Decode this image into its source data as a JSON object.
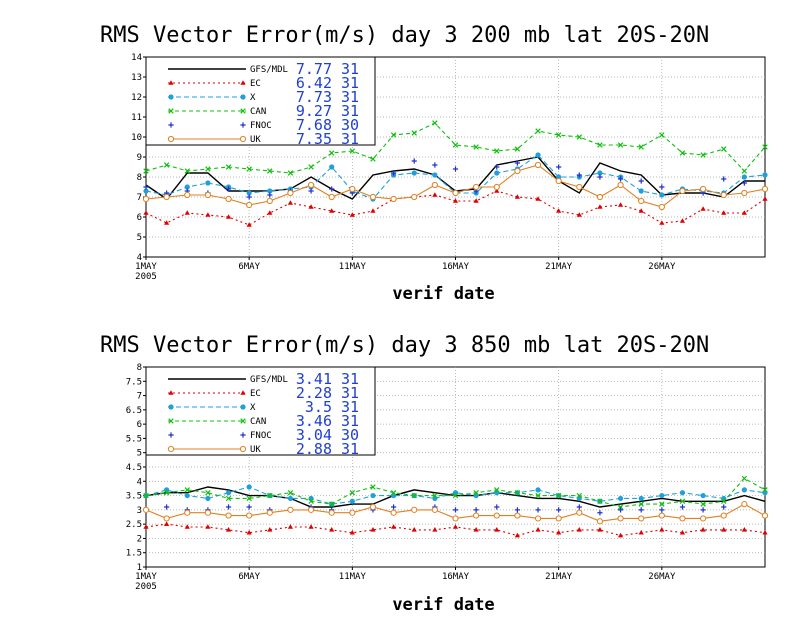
{
  "chart_data": [
    {
      "type": "line",
      "title": "RMS Vector Error(m/s) day 3  200 mb   lat 20S-20N",
      "xlabel": "verif date",
      "ylabel": "",
      "x_tick_labels": [
        "1MAY",
        "6MAY",
        "11MAY",
        "16MAY",
        "21MAY",
        "26MAY"
      ],
      "x_year_label": "2005",
      "x_days": [
        1,
        2,
        3,
        4,
        5,
        6,
        7,
        8,
        9,
        10,
        11,
        12,
        13,
        14,
        15,
        16,
        17,
        18,
        19,
        20,
        21,
        22,
        23,
        24,
        25,
        26,
        27,
        28,
        29,
        30,
        31
      ],
      "ylim": [
        4,
        14
      ],
      "y_ticks": [
        4,
        5,
        6,
        7,
        8,
        9,
        10,
        11,
        12,
        13,
        14
      ],
      "grid": true,
      "legend_position": "top-left",
      "series": [
        {
          "name": "GFS/MDL",
          "stat": "7.77",
          "count": "31",
          "color": "#000000",
          "dash": "",
          "marker": "none",
          "values": [
            7.6,
            6.9,
            8.2,
            8.2,
            7.3,
            7.3,
            7.3,
            7.4,
            8.0,
            7.4,
            6.9,
            8.1,
            8.3,
            8.4,
            8.1,
            7.3,
            7.4,
            8.6,
            8.8,
            9.0,
            7.8,
            7.2,
            8.7,
            8.3,
            8.1,
            7.1,
            7.2,
            7.2,
            7.0,
            7.8,
            7.8
          ]
        },
        {
          "name": "EC",
          "stat": "6.42",
          "count": "31",
          "color": "#e00000",
          "dash": "2,3",
          "marker": "triangle",
          "values": [
            6.2,
            5.7,
            6.2,
            6.1,
            6.0,
            5.6,
            6.2,
            6.7,
            6.5,
            6.3,
            6.1,
            6.3,
            6.9,
            7.0,
            7.1,
            6.8,
            6.8,
            7.3,
            7.0,
            6.9,
            6.3,
            6.1,
            6.5,
            6.6,
            6.3,
            5.7,
            5.8,
            6.4,
            6.2,
            6.2,
            6.9
          ]
        },
        {
          "name": "X",
          "stat": "7.73",
          "count": "31",
          "color": "#20a0d8",
          "dash": "5,3",
          "marker": "circle",
          "values": [
            7.3,
            7.1,
            7.5,
            7.7,
            7.5,
            7.2,
            7.3,
            7.4,
            7.5,
            8.5,
            7.3,
            6.9,
            8.1,
            8.2,
            8.1,
            7.2,
            7.2,
            8.2,
            8.4,
            9.1,
            8.0,
            8.0,
            8.2,
            8.0,
            7.3,
            7.1,
            7.4,
            7.3,
            7.2,
            8.0,
            8.1
          ]
        },
        {
          "name": "CAN",
          "stat": "9.27",
          "count": "31",
          "color": "#10c010",
          "dash": "4,3",
          "marker": "x",
          "values": [
            8.3,
            8.6,
            8.3,
            8.4,
            8.5,
            8.4,
            8.3,
            8.2,
            8.5,
            9.2,
            9.3,
            8.9,
            10.1,
            10.2,
            10.7,
            9.6,
            9.5,
            9.3,
            9.4,
            10.3,
            10.1,
            10.0,
            9.6,
            9.6,
            9.5,
            10.1,
            9.2,
            9.1,
            9.4,
            8.3,
            9.5
          ]
        },
        {
          "name": "FNOC",
          "stat": "7.68",
          "count": "30",
          "color": "#2030d0",
          "dash": "",
          "marker": "plus",
          "values": [
            7.5,
            7.2,
            7.3,
            7.2,
            7.4,
            7.0,
            7.1,
            7.3,
            7.3,
            7.4,
            7.2,
            7.0,
            8.2,
            8.8,
            8.6,
            8.4,
            7.3,
            8.5,
            8.7,
            8.6,
            8.5,
            8.1,
            8.0,
            7.9,
            7.8,
            7.5,
            7.3,
            7.2,
            7.9,
            7.7,
            null
          ]
        },
        {
          "name": "UK",
          "stat": "7.35",
          "count": "31",
          "color": "#e08020",
          "dash": "",
          "marker": "circle-open",
          "values": [
            6.9,
            7.0,
            7.1,
            7.1,
            6.9,
            6.6,
            6.8,
            7.2,
            7.6,
            7.0,
            7.4,
            7.0,
            6.9,
            7.0,
            7.6,
            7.2,
            7.5,
            7.5,
            8.3,
            8.6,
            7.8,
            7.5,
            7.0,
            7.6,
            6.8,
            6.5,
            7.3,
            7.4,
            7.1,
            7.2,
            7.4
          ]
        }
      ]
    },
    {
      "type": "line",
      "title": "RMS Vector Error(m/s) day 3  850 mb   lat 20S-20N",
      "xlabel": "verif date",
      "ylabel": "",
      "x_tick_labels": [
        "1MAY",
        "6MAY",
        "11MAY",
        "16MAY",
        "21MAY",
        "26MAY"
      ],
      "x_year_label": "2005",
      "x_days": [
        1,
        2,
        3,
        4,
        5,
        6,
        7,
        8,
        9,
        10,
        11,
        12,
        13,
        14,
        15,
        16,
        17,
        18,
        19,
        20,
        21,
        22,
        23,
        24,
        25,
        26,
        27,
        28,
        29,
        30,
        31
      ],
      "ylim": [
        1,
        8
      ],
      "y_ticks": [
        1,
        1.5,
        2,
        2.5,
        3,
        3.5,
        4,
        4.5,
        5,
        5.5,
        6,
        6.5,
        7,
        7.5,
        8
      ],
      "grid": true,
      "legend_position": "top-left",
      "series": [
        {
          "name": "GFS/MDL",
          "stat": "3.41",
          "count": "31",
          "color": "#000000",
          "dash": "",
          "marker": "none",
          "values": [
            3.5,
            3.6,
            3.6,
            3.8,
            3.7,
            3.5,
            3.5,
            3.4,
            3.1,
            3.1,
            3.2,
            3.2,
            3.5,
            3.7,
            3.6,
            3.5,
            3.5,
            3.6,
            3.5,
            3.4,
            3.4,
            3.3,
            3.1,
            3.2,
            3.3,
            3.4,
            3.3,
            3.3,
            3.3,
            3.5,
            3.3
          ]
        },
        {
          "name": "EC",
          "stat": "2.28",
          "count": "31",
          "color": "#e00000",
          "dash": "2,3",
          "marker": "triangle",
          "values": [
            2.4,
            2.5,
            2.4,
            2.4,
            2.3,
            2.2,
            2.3,
            2.4,
            2.4,
            2.3,
            2.2,
            2.3,
            2.4,
            2.3,
            2.3,
            2.4,
            2.3,
            2.3,
            2.1,
            2.3,
            2.2,
            2.3,
            2.3,
            2.1,
            2.2,
            2.3,
            2.2,
            2.3,
            2.3,
            2.3,
            2.2
          ]
        },
        {
          "name": "X",
          "stat": "3.5",
          "count": "31",
          "color": "#20a0d8",
          "dash": "5,3",
          "marker": "circle",
          "values": [
            3.5,
            3.7,
            3.5,
            3.4,
            3.6,
            3.8,
            3.5,
            3.4,
            3.4,
            3.2,
            3.3,
            3.5,
            3.5,
            3.5,
            3.4,
            3.6,
            3.5,
            3.6,
            3.6,
            3.7,
            3.5,
            3.4,
            3.3,
            3.4,
            3.4,
            3.5,
            3.6,
            3.5,
            3.4,
            3.7,
            3.6
          ]
        },
        {
          "name": "CAN",
          "stat": "3.46",
          "count": "31",
          "color": "#10c010",
          "dash": "4,3",
          "marker": "x",
          "values": [
            3.5,
            3.6,
            3.7,
            3.6,
            3.4,
            3.4,
            3.5,
            3.6,
            3.3,
            3.2,
            3.6,
            3.8,
            3.6,
            3.5,
            3.5,
            3.5,
            3.6,
            3.7,
            3.6,
            3.5,
            3.5,
            3.5,
            3.3,
            3.1,
            3.2,
            3.2,
            3.3,
            3.2,
            3.3,
            4.1,
            3.7
          ]
        },
        {
          "name": "FNOC",
          "stat": "3.04",
          "count": "30",
          "color": "#2030d0",
          "dash": "",
          "marker": "plus",
          "values": [
            3.0,
            3.1,
            3.0,
            3.0,
            3.1,
            3.1,
            3.0,
            3.0,
            3.1,
            3.0,
            2.9,
            3.0,
            3.1,
            3.0,
            3.1,
            3.0,
            3.0,
            3.1,
            3.0,
            3.0,
            3.0,
            3.1,
            2.9,
            3.0,
            3.0,
            3.0,
            3.1,
            3.0,
            3.1,
            3.2,
            null
          ]
        },
        {
          "name": "UK",
          "stat": "2.88",
          "count": "31",
          "color": "#e08020",
          "dash": "",
          "marker": "circle-open",
          "values": [
            3.0,
            2.7,
            2.9,
            2.9,
            2.8,
            2.8,
            2.9,
            3.0,
            3.0,
            2.9,
            2.9,
            3.1,
            2.9,
            3.0,
            3.0,
            2.7,
            2.8,
            2.8,
            2.8,
            2.7,
            2.7,
            2.9,
            2.6,
            2.7,
            2.7,
            2.8,
            2.7,
            2.7,
            2.8,
            3.2,
            2.8
          ]
        }
      ]
    }
  ]
}
